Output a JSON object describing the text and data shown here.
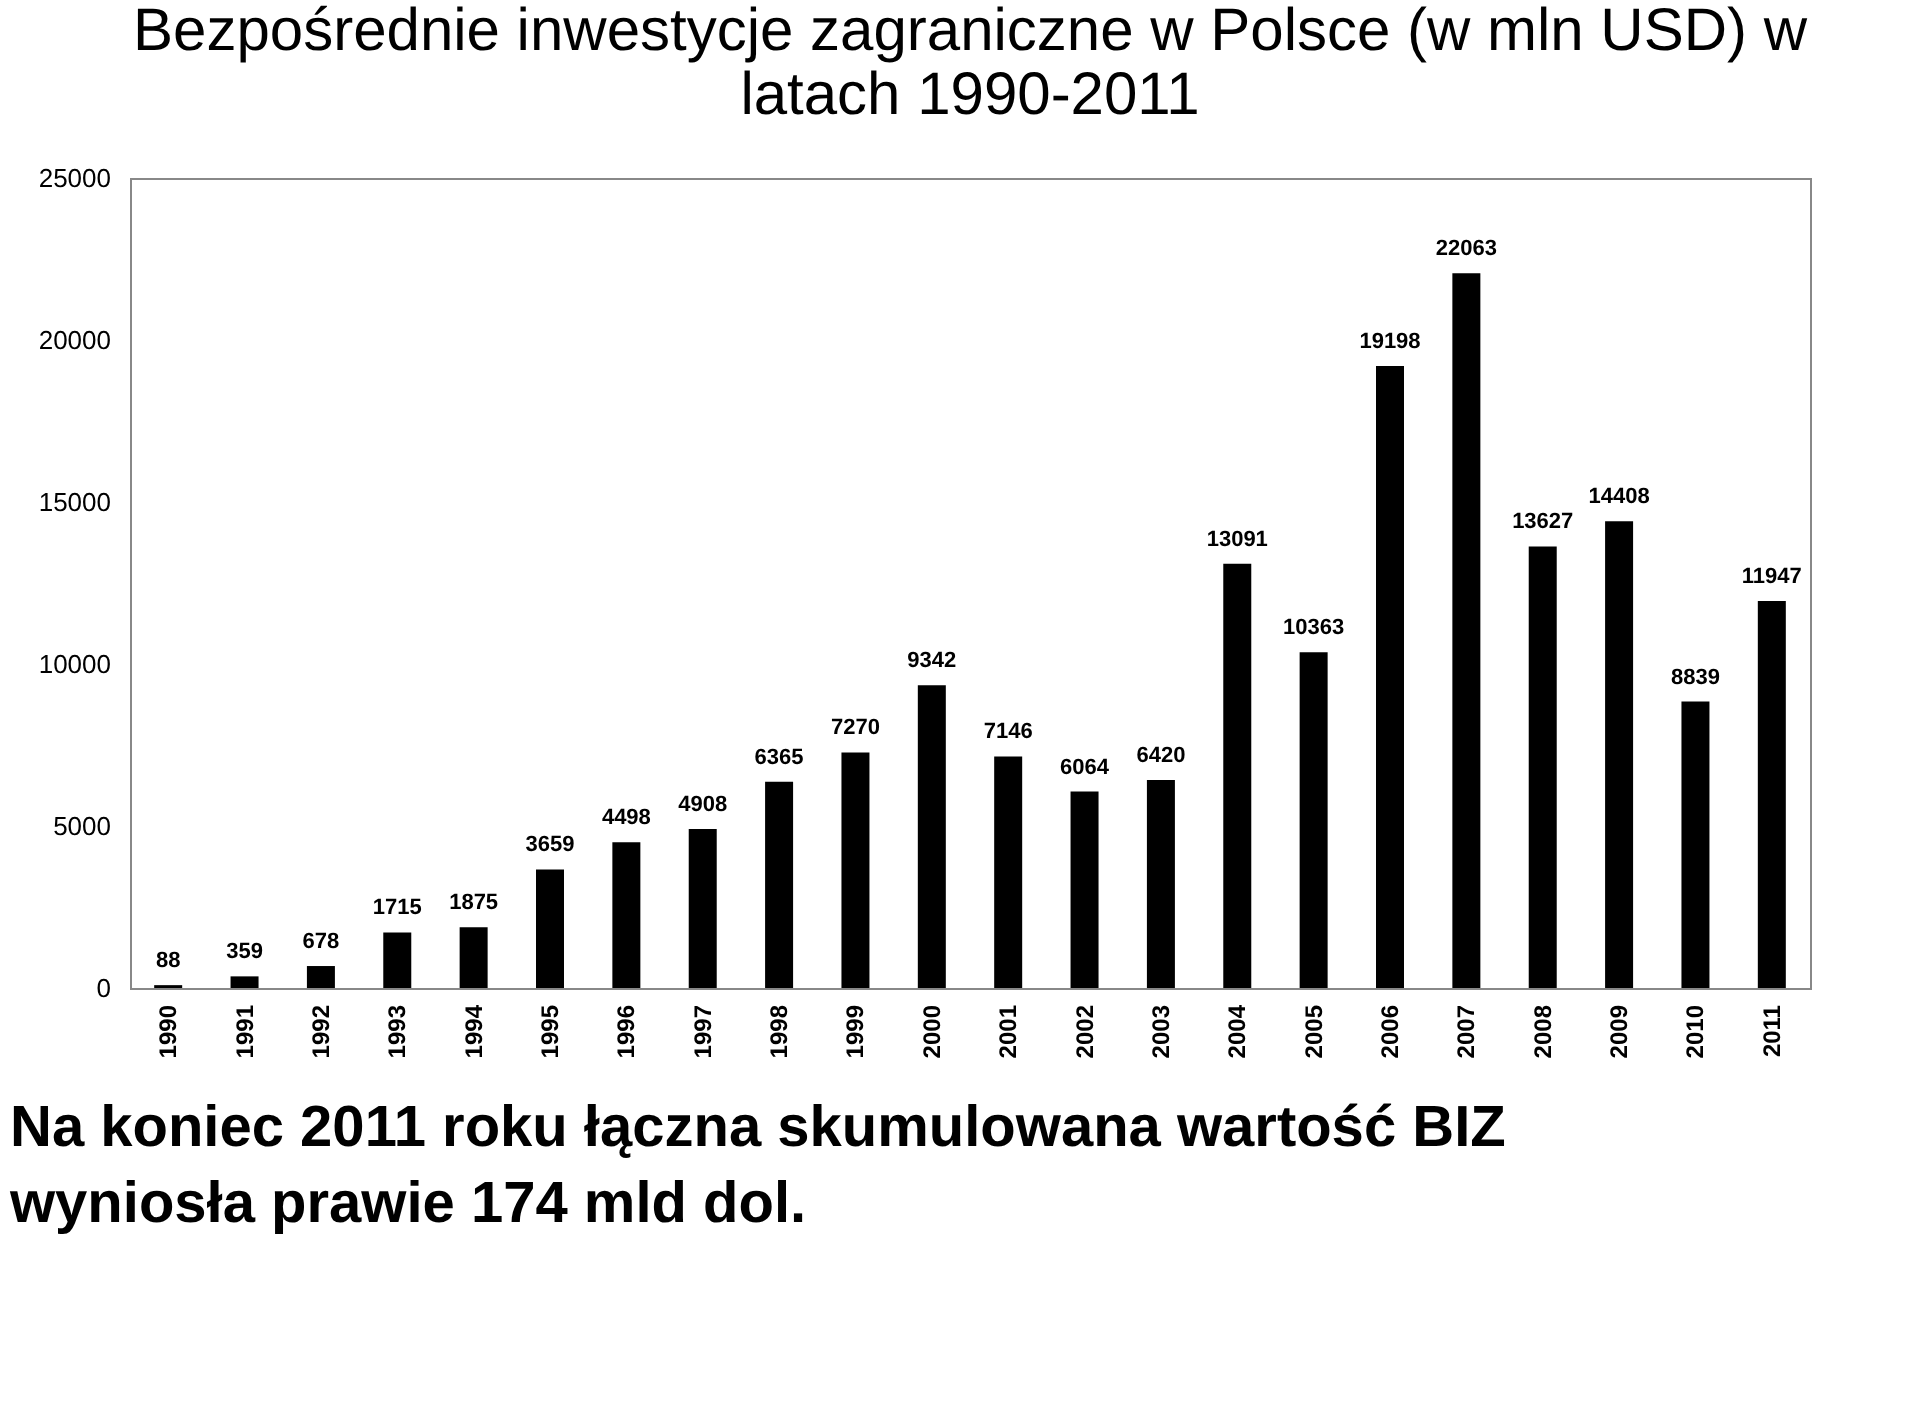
{
  "chart_data": {
    "type": "bar",
    "title": "Bezpośrednie inwestycje zagraniczne w Polsce (w mln USD) w latach 1990-2011",
    "categories": [
      "1990",
      "1991",
      "1992",
      "1993",
      "1994",
      "1995",
      "1996",
      "1997",
      "1998",
      "1999",
      "2000",
      "2001",
      "2002",
      "2003",
      "2004",
      "2005",
      "2006",
      "2007",
      "2008",
      "2009",
      "2010",
      "2011"
    ],
    "values": [
      88,
      359,
      678,
      1715,
      1875,
      3659,
      4498,
      4908,
      6365,
      7270,
      9342,
      7146,
      6064,
      6420,
      13091,
      10363,
      19198,
      22063,
      13627,
      14408,
      8839,
      11947
    ],
    "color": "#000000",
    "ylim": [
      0,
      25000
    ],
    "yticks": [
      0,
      5000,
      10000,
      15000,
      20000,
      25000
    ],
    "grid": false,
    "data_labels": true,
    "annotations": [
      "Na koniec 2011 roku łączna skumulowana wartość BIZ wyniosła prawie 174 mld dol."
    ]
  }
}
